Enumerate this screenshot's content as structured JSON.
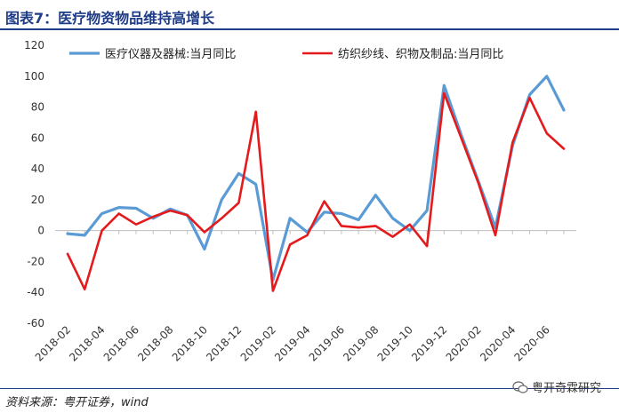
{
  "header": {
    "title": "图表7：医疗物资物品维持高增长"
  },
  "footer": {
    "source": "资料来源：粤开证券，wind",
    "watermark": "粤开奇霖研究"
  },
  "icons": {
    "watermark_icon": "wechat-icon"
  },
  "chart_data": {
    "type": "line",
    "title": "",
    "xlabel": "",
    "ylabel": "",
    "ylim": [
      -60,
      120
    ],
    "yticks": [
      120,
      100,
      80,
      60,
      40,
      20,
      0,
      -20,
      -40,
      -60
    ],
    "legend_position": "top",
    "grid": false,
    "x": [
      "2018-02",
      "2018-03",
      "2018-04",
      "2018-05",
      "2018-06",
      "2018-07",
      "2018-08",
      "2018-09",
      "2018-10",
      "2018-11",
      "2018-12",
      "2019-01",
      "2019-02",
      "2019-03",
      "2019-04",
      "2019-05",
      "2019-06",
      "2019-07",
      "2019-08",
      "2019-09",
      "2019-10",
      "2019-11",
      "2019-12",
      "2020-01",
      "2020-02",
      "2020-03",
      "2020-04",
      "2020-05",
      "2020-06",
      "2020-07"
    ],
    "xtick_labels": [
      "2018-02",
      "2018-04",
      "2018-06",
      "2018-08",
      "2018-10",
      "2018-12",
      "2019-02",
      "2019-04",
      "2019-06",
      "2019-08",
      "2019-10",
      "2019-12",
      "2020-02",
      "2020-04",
      "2020-06"
    ],
    "series": [
      {
        "name": "医疗仪器及器械:当月同比",
        "color": "#5b9bd5",
        "values": [
          -2,
          -3,
          11,
          15,
          14.5,
          8,
          14,
          10,
          -12,
          20,
          37,
          30,
          -32,
          8,
          -1,
          12,
          11,
          7,
          23,
          8,
          0,
          13,
          94,
          62,
          32,
          2,
          55,
          88,
          100,
          78
        ]
      },
      {
        "name": "纺织纱线、织物及制品:当月同比",
        "color": "#e41a1c",
        "values": [
          -15,
          -38,
          0,
          11,
          4,
          9,
          13,
          10,
          -1,
          8,
          18,
          77,
          -39,
          -9,
          -3,
          19,
          3,
          2,
          3,
          -4,
          4,
          -10,
          89,
          60,
          31,
          -3,
          57,
          86,
          63,
          53
        ]
      }
    ]
  }
}
